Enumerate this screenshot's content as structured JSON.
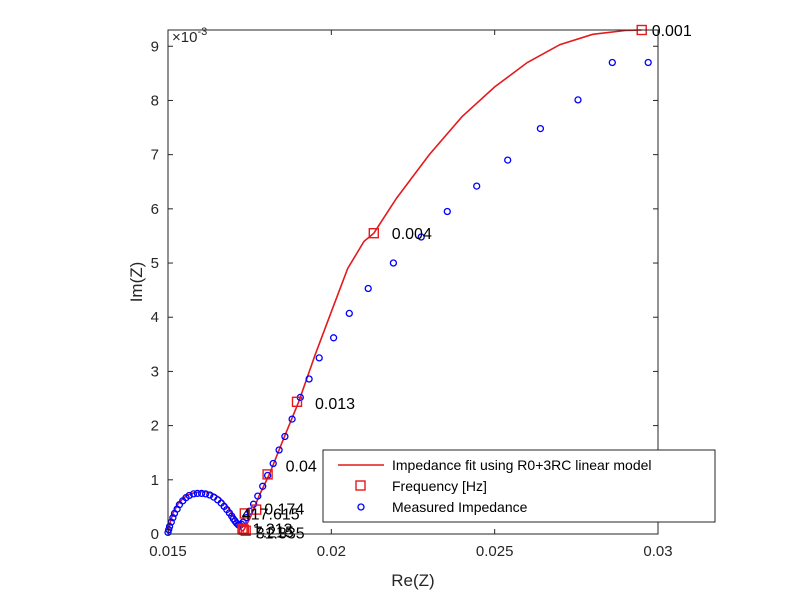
{
  "chart_data": {
    "type": "scatter",
    "xlabel": "Re(Z)",
    "ylabel": "Im(Z)",
    "y_exponent_label": "×10",
    "y_exponent_power": "-3",
    "xlim": [
      0.015,
      0.03
    ],
    "ylim": [
      0,
      9.3
    ],
    "x_ticks": [
      0.015,
      0.02,
      0.025,
      0.03
    ],
    "x_tick_labels": [
      "0.015",
      "0.02",
      "0.025",
      "0.03"
    ],
    "y_ticks": [
      0,
      1,
      2,
      3,
      4,
      5,
      6,
      7,
      8,
      9
    ],
    "y_tick_labels": [
      "0",
      "1",
      "2",
      "3",
      "4",
      "5",
      "6",
      "7",
      "8",
      "9"
    ],
    "grid": false,
    "legend_position": "bottom-right",
    "legend": [
      "Impedance fit using R0+3RC linear model",
      "Frequency [Hz]",
      "Measured Impedance"
    ],
    "colors": {
      "fit": "#e41a1c",
      "frequency": "#e41a1c",
      "measured": "#0000ff",
      "axis": "#262626"
    },
    "series": [
      {
        "name": "Impedance fit using R0+3RC linear model",
        "kind": "line",
        "x": [
          0.015,
          0.01505,
          0.01515,
          0.0153,
          0.01545,
          0.0156,
          0.0158,
          0.016,
          0.01615,
          0.0163,
          0.01645,
          0.0166,
          0.01675,
          0.0169,
          0.017,
          0.0171,
          0.0172,
          0.0173,
          0.0175,
          0.0178,
          0.0181,
          0.0185,
          0.019,
          0.0195,
          0.02,
          0.0205,
          0.021,
          0.0213,
          0.022,
          0.023,
          0.024,
          0.025,
          0.026,
          0.027,
          0.028,
          0.029,
          0.0295
        ],
        "y": [
          0.0,
          0.18,
          0.38,
          0.55,
          0.65,
          0.72,
          0.76,
          0.78,
          0.78,
          0.76,
          0.72,
          0.66,
          0.56,
          0.44,
          0.32,
          0.2,
          0.1,
          0.05,
          0.28,
          0.72,
          1.1,
          1.7,
          2.44,
          3.3,
          4.1,
          4.9,
          5.4,
          5.55,
          6.2,
          7.0,
          7.7,
          8.25,
          8.7,
          9.03,
          9.22,
          9.29,
          9.3
        ]
      },
      {
        "name": "Frequency [Hz]",
        "kind": "marker",
        "x": [
          0.0295,
          0.0213,
          0.01895,
          0.01805,
          0.0177,
          0.01735,
          0.01728,
          0.01732,
          0.01738
        ],
        "y": [
          9.3,
          5.55,
          2.44,
          1.1,
          0.45,
          0.38,
          0.1,
          0.08,
          0.06
        ],
        "labels": [
          "0.001",
          "0.004",
          "0.013",
          "0.04",
          "0.174",
          "417.615",
          "1.313",
          "7.215",
          "31.335"
        ]
      },
      {
        "name": "Measured Impedance",
        "kind": "scatter",
        "x": [
          0.015,
          0.01502,
          0.01505,
          0.0151,
          0.01515,
          0.0152,
          0.01528,
          0.01535,
          0.01545,
          0.01555,
          0.01565,
          0.01578,
          0.0159,
          0.01603,
          0.01615,
          0.01628,
          0.0164,
          0.01652,
          0.01663,
          0.01672,
          0.0168,
          0.01688,
          0.01695,
          0.017,
          0.01705,
          0.0171,
          0.01715,
          0.0172,
          0.01725,
          0.0173,
          0.0174,
          0.0175,
          0.01762,
          0.01775,
          0.0179,
          0.01805,
          0.01822,
          0.0184,
          0.01858,
          0.0188,
          0.01905,
          0.01932,
          0.01963,
          0.02007,
          0.02055,
          0.02113,
          0.0219,
          0.02275,
          0.02355,
          0.02445,
          0.0254,
          0.0264,
          0.02755,
          0.0286,
          0.0297
        ],
        "y": [
          0.03,
          0.08,
          0.14,
          0.22,
          0.3,
          0.38,
          0.46,
          0.54,
          0.61,
          0.67,
          0.71,
          0.74,
          0.75,
          0.75,
          0.74,
          0.72,
          0.68,
          0.63,
          0.57,
          0.51,
          0.45,
          0.39,
          0.33,
          0.28,
          0.24,
          0.2,
          0.17,
          0.16,
          0.18,
          0.22,
          0.3,
          0.42,
          0.55,
          0.7,
          0.88,
          1.08,
          1.3,
          1.55,
          1.8,
          2.12,
          2.52,
          2.86,
          3.25,
          3.62,
          4.07,
          4.53,
          5.0,
          5.48,
          5.95,
          6.42,
          6.9,
          7.48,
          8.01,
          8.7,
          8.7
        ]
      }
    ]
  }
}
